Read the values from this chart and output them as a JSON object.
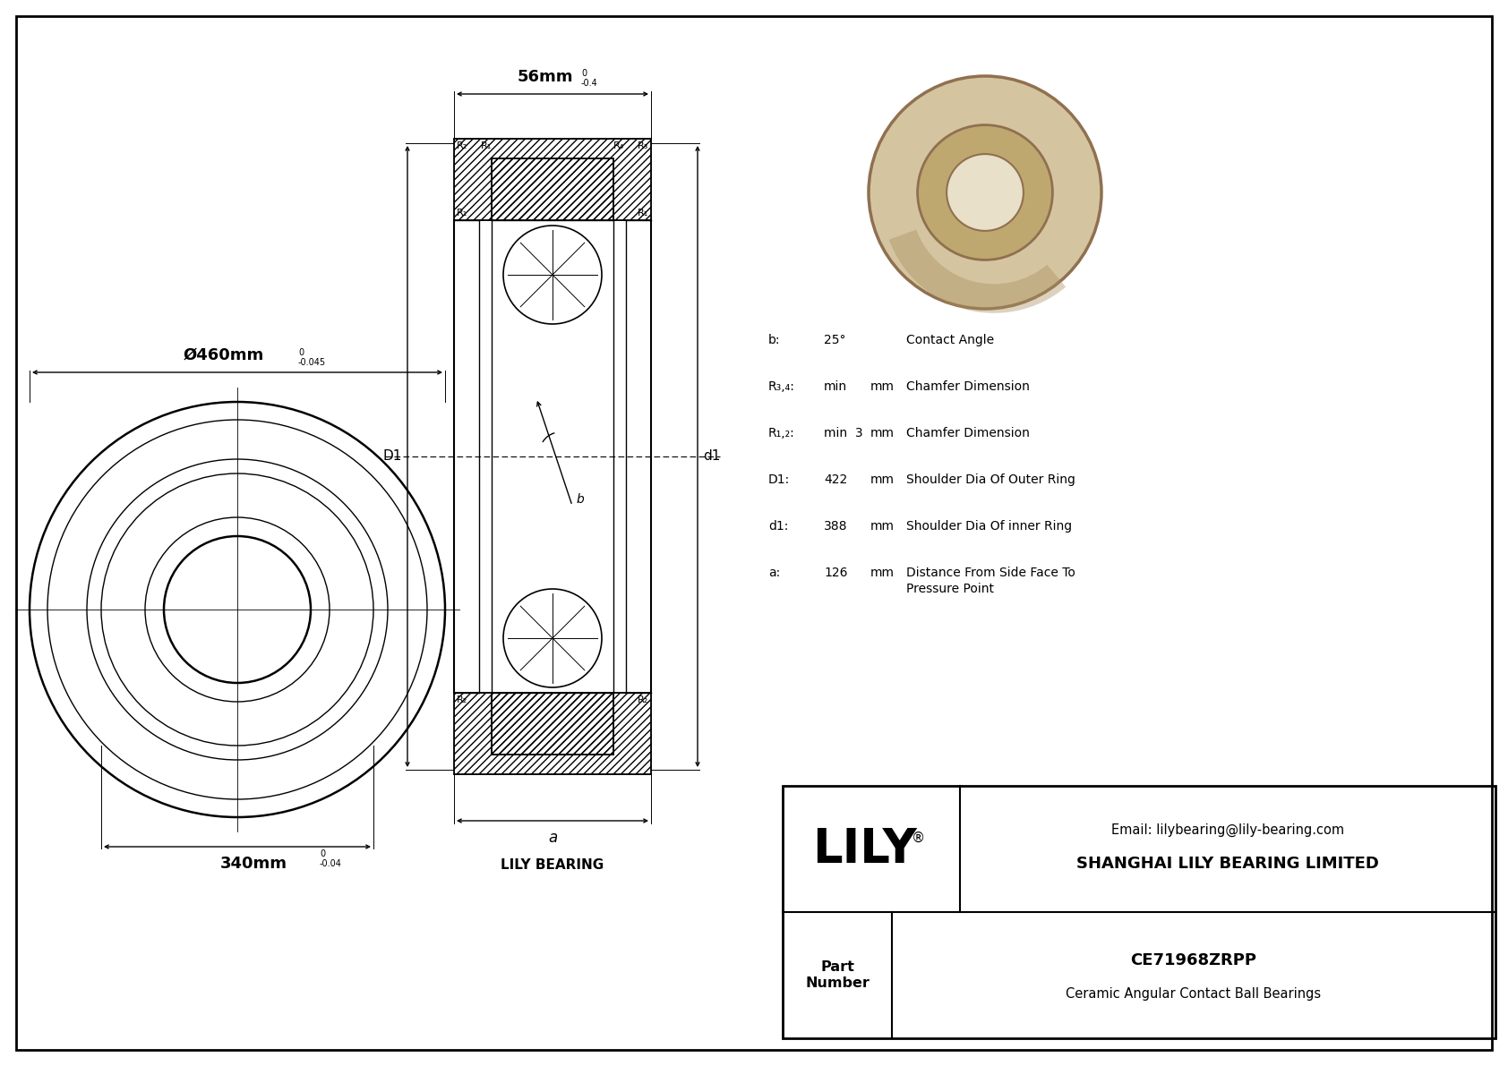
{
  "bg_color": "#ffffff",
  "lc": "#000000",
  "dim_outer_dia": "Ø460mm",
  "dim_outer_tol_top": "0",
  "dim_outer_tol_bot": "-0.045",
  "dim_width": "56mm",
  "dim_width_tol_top": "0",
  "dim_width_tol_bot": "-0.4",
  "dim_inner_dia": "340mm",
  "dim_inner_tol_top": "0",
  "dim_inner_tol_bot": "-0.04",
  "spec_b_label": "b:",
  "spec_b_value": "25°",
  "spec_b_desc": "Contact Angle",
  "spec_r34_label": "R₃,₄:",
  "spec_r34_value": "min",
  "spec_r34_unit": "mm",
  "spec_r34_desc": "Chamfer Dimension",
  "spec_r12_label": "R₁,₂:",
  "spec_r12_value": "min  3",
  "spec_r12_unit": "mm",
  "spec_r12_desc": "Chamfer Dimension",
  "spec_D1_label": "D1:",
  "spec_D1_value": "422",
  "spec_D1_unit": "mm",
  "spec_D1_desc": "Shoulder Dia Of Outer Ring",
  "spec_d1_label": "d1:",
  "spec_d1_value": "388",
  "spec_d1_unit": "mm",
  "spec_d1_desc": "Shoulder Dia Of inner Ring",
  "spec_a_label": "a:",
  "spec_a_value": "126",
  "spec_a_unit": "mm",
  "spec_a_desc1": "Distance From Side Face To",
  "spec_a_desc2": "Pressure Point",
  "lily_bearing_label": "LILY BEARING",
  "title_company": "SHANGHAI LILY BEARING LIMITED",
  "title_email": "Email: lilybearing@lily-bearing.com",
  "part_number": "CE71968ZRPP",
  "part_type": "Ceramic Angular Contact Ball Bearings",
  "photo_outer_color": "#D4C5A0",
  "photo_mid_color": "#BEA870",
  "photo_bore_color": "#E8E0C8",
  "photo_edge_color": "#907050",
  "photo_shadow": "#A89060"
}
